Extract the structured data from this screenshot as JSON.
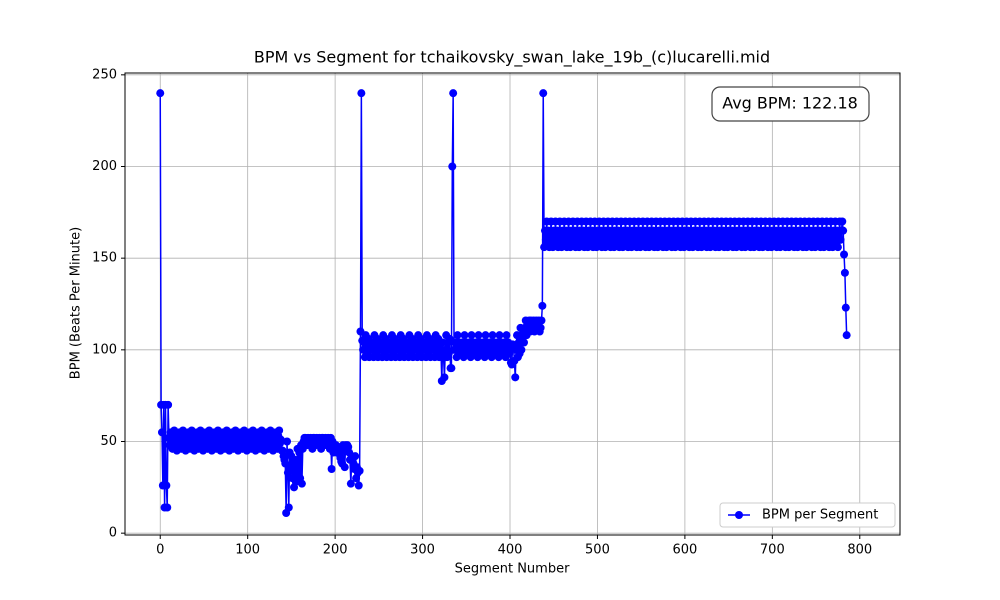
{
  "chart_data": {
    "type": "line",
    "title": "BPM vs Segment for tchaikovsky_swan_lake_19b_(c)lucarelli.mid",
    "x_label": "Segment Number",
    "y_label": "BPM (Beats Per Minute)",
    "annotation": "Avg BPM: 122.18",
    "legend": "lower right",
    "grid": true,
    "xlim": [
      -40.3,
      846
    ],
    "ylim": [
      -1,
      251
    ],
    "xticks": [
      0,
      100,
      200,
      300,
      400,
      500,
      600,
      700,
      800
    ],
    "yticks": [
      0,
      50,
      100,
      150,
      200,
      250
    ],
    "series": [
      {
        "name": "BPM per Segment",
        "color": "#0000ff",
        "values": [
          240,
          70,
          55,
          26,
          70,
          14,
          70,
          26,
          14,
          70,
          52,
          48,
          55,
          50,
          46,
          53,
          56,
          49,
          51,
          45,
          52,
          48,
          55,
          50,
          46,
          53,
          56,
          49,
          51,
          45,
          52,
          48,
          55,
          50,
          46,
          53,
          56,
          49,
          51,
          45,
          52,
          48,
          55,
          50,
          46,
          53,
          56,
          49,
          51,
          45,
          52,
          48,
          55,
          50,
          46,
          53,
          56,
          49,
          51,
          45,
          52,
          48,
          55,
          50,
          46,
          53,
          56,
          49,
          51,
          45,
          52,
          48,
          55,
          50,
          46,
          53,
          56,
          49,
          51,
          45,
          52,
          48,
          55,
          50,
          46,
          53,
          56,
          49,
          51,
          45,
          52,
          48,
          55,
          50,
          46,
          53,
          56,
          49,
          51,
          45,
          52,
          48,
          55,
          50,
          46,
          53,
          56,
          49,
          51,
          45,
          52,
          48,
          55,
          50,
          46,
          53,
          56,
          49,
          51,
          45,
          52,
          48,
          55,
          50,
          46,
          53,
          56,
          49,
          51,
          45,
          52,
          48,
          55,
          50,
          46,
          53,
          56,
          49,
          51,
          45,
          45,
          42,
          40,
          38,
          11,
          50,
          33,
          14,
          44,
          36,
          42,
          30,
          38,
          25,
          40,
          28,
          35,
          46,
          32,
          44,
          30,
          48,
          27,
          46,
          50,
          52,
          52,
          50,
          48,
          52,
          51,
          49,
          52,
          50,
          46,
          52,
          52,
          50,
          48,
          52,
          51,
          49,
          52,
          50,
          46,
          52,
          52,
          50,
          48,
          52,
          51,
          49,
          52,
          50,
          46,
          52,
          35,
          50,
          44,
          48,
          46,
          48,
          44,
          47,
          45,
          43,
          41,
          39,
          38,
          48,
          46,
          36,
          48,
          45,
          48,
          47,
          44,
          40,
          27,
          42,
          40,
          38,
          35,
          42,
          30,
          36,
          33,
          26,
          34,
          110,
          240,
          105,
          100,
          104,
          96,
          108,
          102,
          98,
          106,
          96,
          104,
          100,
          100,
          104,
          96,
          108,
          102,
          98,
          106,
          96,
          104,
          100,
          100,
          104,
          96,
          108,
          102,
          98,
          106,
          96,
          104,
          100,
          100,
          104,
          96,
          108,
          102,
          98,
          106,
          96,
          104,
          100,
          100,
          104,
          96,
          108,
          102,
          98,
          106,
          96,
          104,
          100,
          100,
          104,
          96,
          108,
          102,
          98,
          106,
          96,
          104,
          100,
          100,
          104,
          96,
          108,
          102,
          98,
          106,
          96,
          104,
          100,
          100,
          104,
          96,
          108,
          102,
          98,
          106,
          96,
          104,
          100,
          100,
          104,
          96,
          108,
          102,
          98,
          106,
          96,
          104,
          100,
          83,
          104,
          96,
          85,
          100,
          108,
          96,
          104,
          98,
          106,
          90,
          90,
          200,
          240,
          100,
          104,
          100,
          96,
          108,
          102,
          104,
          98,
          100,
          104,
          100,
          96,
          108,
          102,
          104,
          98,
          100,
          104,
          100,
          96,
          108,
          102,
          104,
          98,
          100,
          104,
          100,
          96,
          108,
          102,
          104,
          98,
          100,
          104,
          100,
          96,
          108,
          102,
          104,
          98,
          100,
          104,
          100,
          96,
          108,
          102,
          104,
          98,
          100,
          104,
          100,
          96,
          108,
          102,
          104,
          98,
          100,
          104,
          100,
          96,
          108,
          102,
          104,
          98,
          100,
          93,
          92,
          103,
          101,
          94,
          85,
          100,
          108,
          96,
          104,
          98,
          112,
          100,
          106,
          110,
          104,
          112,
          116,
          108,
          114,
          112,
          116,
          110,
          116,
          112,
          114,
          116,
          110,
          112,
          116,
          114,
          112,
          116,
          110,
          112,
          116,
          124,
          240,
          156,
          165,
          160,
          170,
          158,
          165,
          156,
          162,
          170,
          160,
          156,
          165,
          160,
          170,
          158,
          165,
          156,
          162,
          170,
          160,
          156,
          165,
          160,
          170,
          158,
          165,
          156,
          162,
          170,
          160,
          156,
          165,
          160,
          170,
          158,
          165,
          156,
          162,
          170,
          160,
          156,
          165,
          160,
          170,
          158,
          165,
          156,
          162,
          170,
          160,
          156,
          165,
          160,
          170,
          158,
          165,
          156,
          162,
          170,
          160,
          156,
          165,
          160,
          170,
          158,
          165,
          156,
          162,
          170,
          160,
          156,
          165,
          160,
          170,
          158,
          165,
          156,
          162,
          170,
          160,
          156,
          165,
          160,
          170,
          158,
          165,
          156,
          162,
          170,
          160,
          156,
          165,
          160,
          170,
          158,
          165,
          156,
          162,
          170,
          160,
          156,
          165,
          160,
          170,
          158,
          165,
          156,
          162,
          170,
          160,
          156,
          165,
          160,
          170,
          158,
          165,
          156,
          162,
          170,
          160,
          156,
          165,
          160,
          170,
          158,
          165,
          156,
          162,
          170,
          160,
          156,
          165,
          160,
          170,
          158,
          165,
          156,
          162,
          170,
          160,
          156,
          165,
          160,
          170,
          158,
          165,
          156,
          162,
          170,
          160,
          156,
          165,
          160,
          170,
          158,
          165,
          156,
          162,
          170,
          160,
          156,
          165,
          160,
          170,
          158,
          165,
          156,
          162,
          170,
          160,
          156,
          165,
          160,
          170,
          158,
          165,
          156,
          162,
          170,
          160,
          156,
          165,
          160,
          170,
          158,
          165,
          156,
          162,
          170,
          160,
          156,
          165,
          160,
          170,
          158,
          165,
          156,
          162,
          170,
          160,
          156,
          165,
          160,
          170,
          158,
          165,
          156,
          162,
          170,
          160,
          156,
          165,
          160,
          170,
          158,
          165,
          156,
          162,
          170,
          160,
          156,
          165,
          160,
          170,
          158,
          165,
          156,
          162,
          170,
          160,
          156,
          165,
          160,
          170,
          158,
          165,
          156,
          162,
          170,
          160,
          156,
          165,
          160,
          170,
          158,
          165,
          156,
          162,
          170,
          160,
          156,
          165,
          160,
          170,
          158,
          165,
          156,
          162,
          170,
          160,
          156,
          165,
          160,
          170,
          158,
          165,
          156,
          162,
          170,
          160,
          156,
          165,
          160,
          170,
          158,
          165,
          156,
          162,
          170,
          160,
          156,
          165,
          160,
          170,
          158,
          165,
          156,
          162,
          170,
          160,
          156,
          165,
          160,
          170,
          158,
          165,
          156,
          162,
          170,
          160,
          156,
          165,
          160,
          170,
          158,
          165,
          156,
          162,
          170,
          160,
          156,
          165,
          160,
          170,
          158,
          165,
          156,
          162,
          170,
          160,
          156,
          165,
          160,
          170,
          158,
          165,
          156,
          162,
          170,
          160,
          156,
          165,
          160,
          170,
          158,
          165,
          156,
          162,
          170,
          160,
          165,
          170,
          165,
          152,
          142,
          123,
          108
        ]
      }
    ]
  }
}
